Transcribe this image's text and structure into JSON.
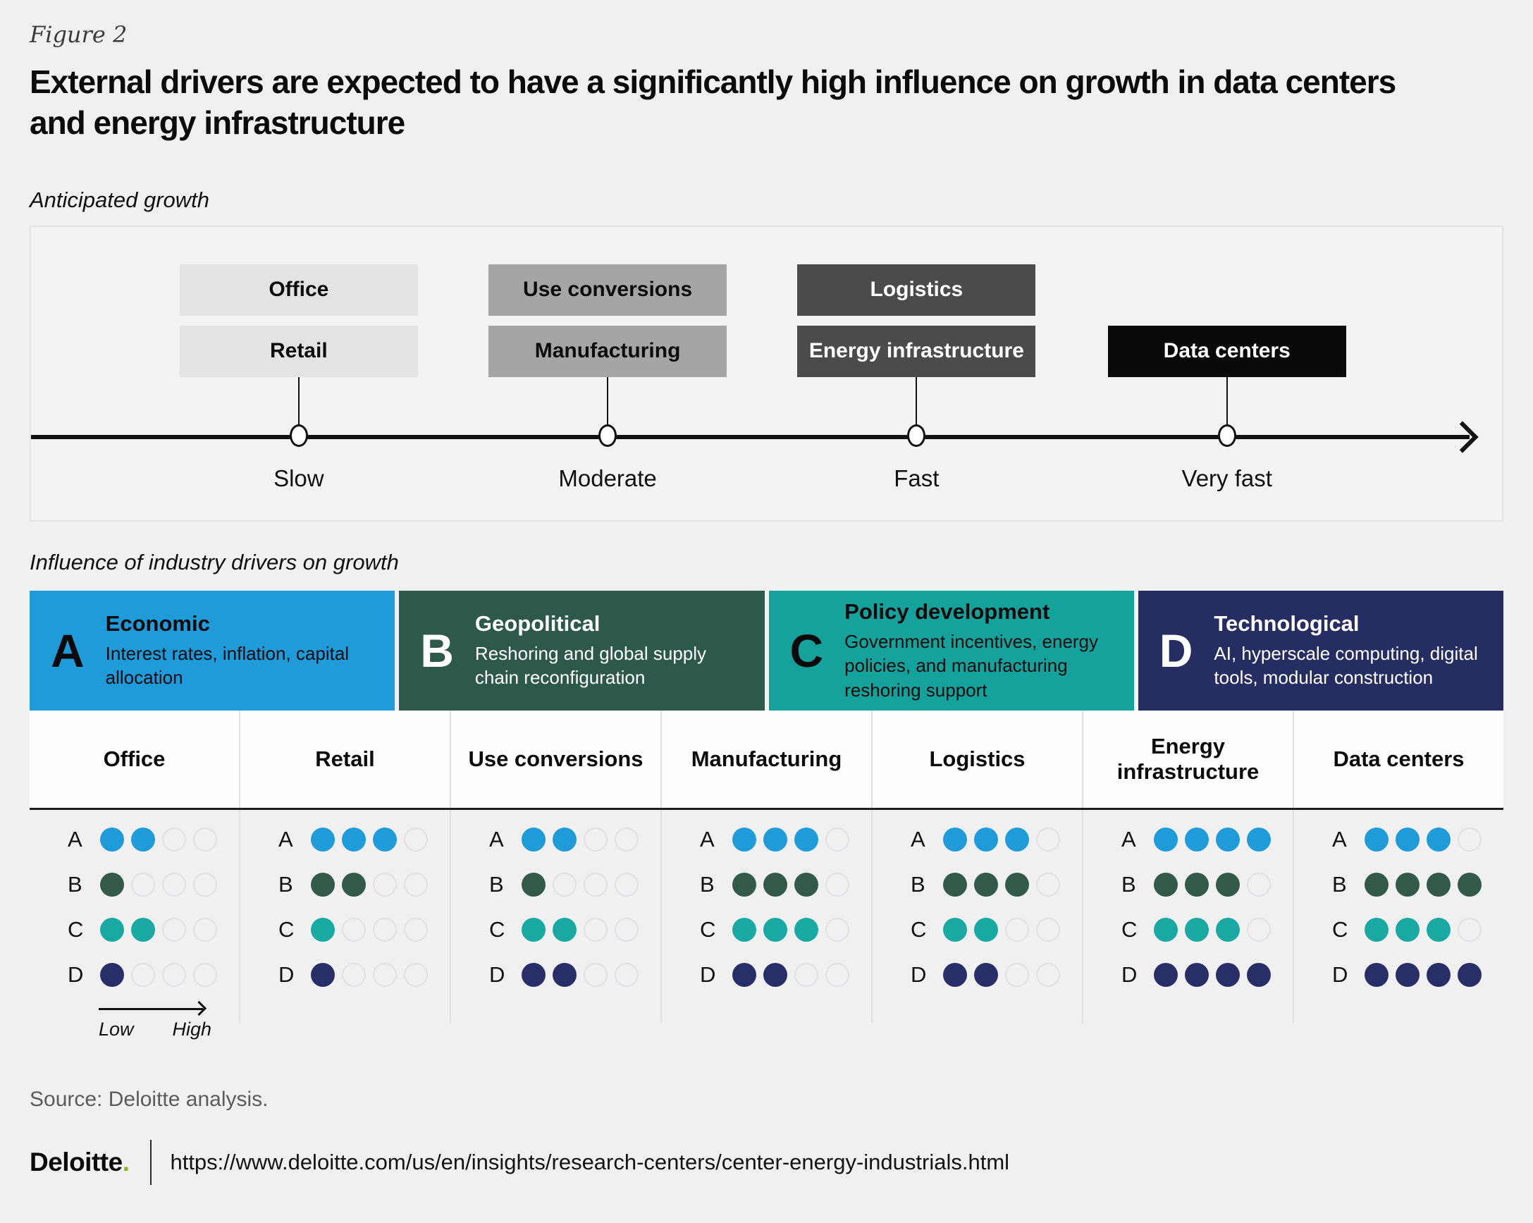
{
  "figure_label": "Figure 2",
  "title": "External drivers are expected to have a significantly high influence on growth in data centers and energy infrastructure",
  "sections": {
    "growth_label": "Anticipated growth",
    "influence_label": "Influence of industry drivers on growth"
  },
  "timeline": {
    "stops": [
      {
        "label": "Slow",
        "boxes": [
          {
            "text": "Office"
          },
          {
            "text": "Retail"
          }
        ]
      },
      {
        "label": "Moderate",
        "boxes": [
          {
            "text": "Use conversions"
          },
          {
            "text": "Manufacturing"
          }
        ]
      },
      {
        "label": "Fast",
        "boxes": [
          {
            "text": "Logistics"
          },
          {
            "text": "Energy infrastructure"
          }
        ]
      },
      {
        "label": "Very fast",
        "boxes": [
          {
            "text": "Data centers"
          }
        ]
      }
    ]
  },
  "drivers": [
    {
      "letter": "A",
      "name": "Economic",
      "description": "Interest rates, inflation, capital allocation",
      "color": "#1e9bd8",
      "text_color": "#0b0b0b"
    },
    {
      "letter": "B",
      "name": "Geopolitical",
      "description": "Reshoring and global supply chain reconfiguration",
      "color": "#2d594a",
      "text_color": "#ffffff"
    },
    {
      "letter": "C",
      "name": "Policy development",
      "description": "Government incentives, energy policies, and manufacturing reshoring support",
      "color": "#16a29c",
      "text_color": "#0b0b0b"
    },
    {
      "letter": "D",
      "name": "Technological",
      "description": "AI, hyperscale computing, digital tools, modular construction",
      "color": "#262d63",
      "text_color": "#ffffff"
    }
  ],
  "chart_data": [
    {
      "type": "table",
      "title": "Anticipated growth",
      "axis_labels": [
        "Slow",
        "Moderate",
        "Fast",
        "Very fast"
      ],
      "assignments": {
        "Slow": [
          "Office",
          "Retail"
        ],
        "Moderate": [
          "Use conversions",
          "Manufacturing"
        ],
        "Fast": [
          "Logistics",
          "Energy infrastructure"
        ],
        "Very fast": [
          "Data centers"
        ]
      }
    },
    {
      "type": "heatmap",
      "title": "Influence of industry drivers on growth",
      "scale": {
        "min_label": "Low",
        "max_label": "High",
        "max_dots": 4
      },
      "categories": [
        "Office",
        "Retail",
        "Use conversions",
        "Manufacturing",
        "Logistics",
        "Energy infrastructure",
        "Data centers"
      ],
      "series": [
        {
          "letter": "A",
          "name": "Economic",
          "color": "#1e9bd8",
          "values": [
            2,
            3,
            2,
            3,
            3,
            4,
            3
          ]
        },
        {
          "letter": "B",
          "name": "Geopolitical",
          "color": "#335a49",
          "values": [
            1,
            2,
            1,
            3,
            3,
            3,
            4
          ]
        },
        {
          "letter": "C",
          "name": "Policy development",
          "color": "#1aa8a2",
          "values": [
            2,
            1,
            2,
            3,
            2,
            3,
            3
          ]
        },
        {
          "letter": "D",
          "name": "Technological",
          "color": "#272e68",
          "values": [
            1,
            1,
            2,
            2,
            2,
            4,
            4
          ]
        }
      ]
    }
  ],
  "footer": {
    "source": "Source: Deloitte analysis.",
    "logo_text": "Deloitte",
    "logo_period": ".",
    "url": "https://www.deloitte.com/us/en/insights/research-centers/center-energy-industrials.html"
  },
  "colors": {
    "page_background": "#f1f0f1",
    "panel_background": "#f4f3f4",
    "growth_slow_box": "#e4e3e4",
    "growth_moderate_box": "#a6a5a6",
    "growth_fast_box": "#4b4b4b",
    "growth_veryfast_box": "#0a0a0a",
    "deloitte_green": "#86bc25",
    "empty_dot_outline": "#dfdfe4"
  }
}
